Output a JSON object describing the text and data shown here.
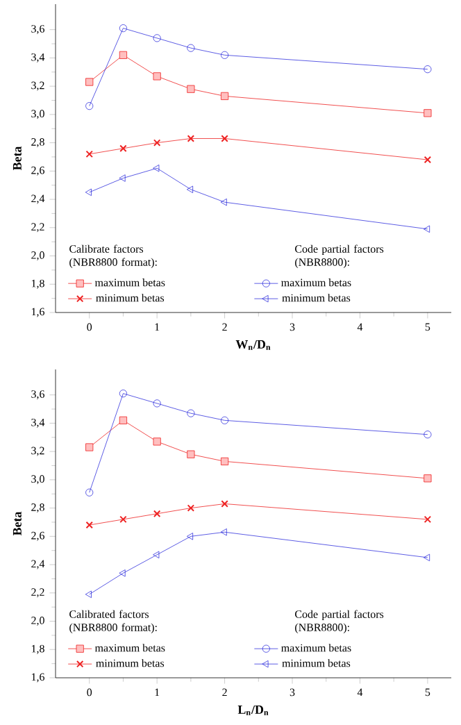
{
  "chart_data": [
    {
      "type": "line",
      "xlabel": "W$_{n}$/D$_{n}$",
      "ylabel": "Beta",
      "x": [
        0,
        0.5,
        1,
        1.5,
        2,
        5
      ],
      "xlim": [
        -0.5,
        5.35
      ],
      "ylim": [
        1.6,
        3.78
      ],
      "xticks": [
        0,
        1,
        2,
        3,
        4,
        5
      ],
      "yticks": [
        {
          "value": 1.6,
          "label": "1,6"
        },
        {
          "value": 1.8,
          "label": "1,8"
        },
        {
          "value": 2.0,
          "label": "2,0"
        },
        {
          "value": 2.2,
          "label": "2,2"
        },
        {
          "value": 2.4,
          "label": "2,4"
        },
        {
          "value": 2.6,
          "label": "2,6"
        },
        {
          "value": 2.8,
          "label": "2,8"
        },
        {
          "value": 3.0,
          "label": "3,0"
        },
        {
          "value": 3.2,
          "label": "3,2"
        },
        {
          "value": 3.4,
          "label": "3,4"
        },
        {
          "value": 3.6,
          "label": "3,6"
        }
      ],
      "legend": "bottom",
      "annotations": [
        "Calibrate factors (NBR8800 format):",
        "Code partial factors (NBR8800):"
      ],
      "series": [
        {
          "name": "maximum betas",
          "color": "#ee2222",
          "marker": "square",
          "values": [
            3.23,
            3.42,
            3.27,
            3.18,
            3.13,
            3.01
          ]
        },
        {
          "name": "minimum betas",
          "color": "#ee2222",
          "marker": "cross",
          "values": [
            2.72,
            2.76,
            2.8,
            2.83,
            2.83,
            2.68
          ]
        },
        {
          "name": "maximum betas",
          "color": "#3333dd",
          "marker": "circle",
          "values": [
            3.06,
            3.61,
            3.54,
            3.47,
            3.42,
            3.32
          ]
        },
        {
          "name": "minimum betas",
          "color": "#3333dd",
          "marker": "triangle",
          "values": [
            2.45,
            2.55,
            2.62,
            2.47,
            2.38,
            2.19
          ]
        }
      ]
    },
    {
      "type": "line",
      "xlabel": "L$_{n}$/D$_{n}$",
      "ylabel": "Beta",
      "x": [
        0,
        0.5,
        1,
        1.5,
        2,
        5
      ],
      "xlim": [
        -0.5,
        5.35
      ],
      "ylim": [
        1.6,
        3.78
      ],
      "xticks": [
        0,
        1,
        2,
        3,
        4,
        5
      ],
      "yticks": [
        {
          "value": 1.6,
          "label": "1,6"
        },
        {
          "value": 1.8,
          "label": "1,8"
        },
        {
          "value": 2.0,
          "label": "2,0"
        },
        {
          "value": 2.2,
          "label": "2,2"
        },
        {
          "value": 2.4,
          "label": "2,4"
        },
        {
          "value": 2.6,
          "label": "2,6"
        },
        {
          "value": 2.8,
          "label": "2,8"
        },
        {
          "value": 3.0,
          "label": "3,0"
        },
        {
          "value": 3.2,
          "label": "3,2"
        },
        {
          "value": 3.4,
          "label": "3,4"
        },
        {
          "value": 3.6,
          "label": "3,6"
        }
      ],
      "legend": "bottom",
      "annotations": [
        "Calibrated factors (NBR8800 format):",
        "Code partial factors (NBR8800):"
      ],
      "series": [
        {
          "name": "maximum betas",
          "color": "#ee2222",
          "marker": "square",
          "values": [
            3.23,
            3.42,
            3.27,
            3.18,
            3.13,
            3.01
          ]
        },
        {
          "name": "minimum betas",
          "color": "#ee2222",
          "marker": "cross",
          "values": [
            2.68,
            2.72,
            2.76,
            2.8,
            2.83,
            2.72
          ]
        },
        {
          "name": "maximum betas",
          "color": "#3333dd",
          "marker": "circle",
          "values": [
            2.91,
            3.61,
            3.54,
            3.47,
            3.42,
            3.32
          ]
        },
        {
          "name": "minimum betas",
          "color": "#3333dd",
          "marker": "triangle",
          "values": [
            2.19,
            2.34,
            2.47,
            2.6,
            2.63,
            2.45
          ]
        }
      ]
    }
  ]
}
